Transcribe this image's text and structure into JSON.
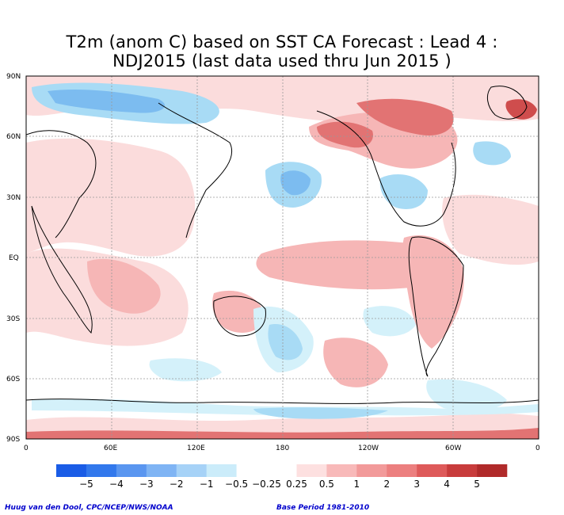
{
  "title": {
    "line1": "T2m (anom C) based on SST CA Forecast : Lead 4 :",
    "line2": "NDJ2015 (last data used thru Jun 2015 )"
  },
  "axes": {
    "lat_labels": [
      "90N",
      "60N",
      "30N",
      "EQ",
      "30S",
      "60S",
      "90S"
    ],
    "lon_labels": [
      "0",
      "60E",
      "120E",
      "180",
      "120W",
      "60W",
      "0"
    ]
  },
  "colorbar": {
    "colors": [
      "#1a5ce6",
      "#3278ec",
      "#5a96f0",
      "#7fb4f4",
      "#a6d2f7",
      "#cbecfa",
      "#ffffff",
      "#ffffff",
      "#fde0e0",
      "#f8b9b9",
      "#f29a9a",
      "#ec7f7f",
      "#de5a5a",
      "#c83c3c",
      "#b02a2a"
    ],
    "labels": [
      "−5",
      "−4",
      "−3",
      "−2",
      "−1",
      "−0.5",
      "−0.25",
      "0.25",
      "0.5",
      "1",
      "2",
      "3",
      "4",
      "5"
    ]
  },
  "credits": {
    "left": "Huug van den Dool, CPC/NCEP/NWS/NOAA",
    "right": "Base Period 1981-2010"
  },
  "palette": {
    "ocean_warm": "#fbdcdc",
    "warm1": "#f6b6b6",
    "warm2": "#ee9a9a",
    "warm3": "#e27373",
    "warm4": "#cf4d4d",
    "cool1": "#d4f1fa",
    "cool2": "#a8dbf5",
    "cool3": "#7cbcf0",
    "cool4": "#5096ea",
    "coast": "#000000"
  }
}
